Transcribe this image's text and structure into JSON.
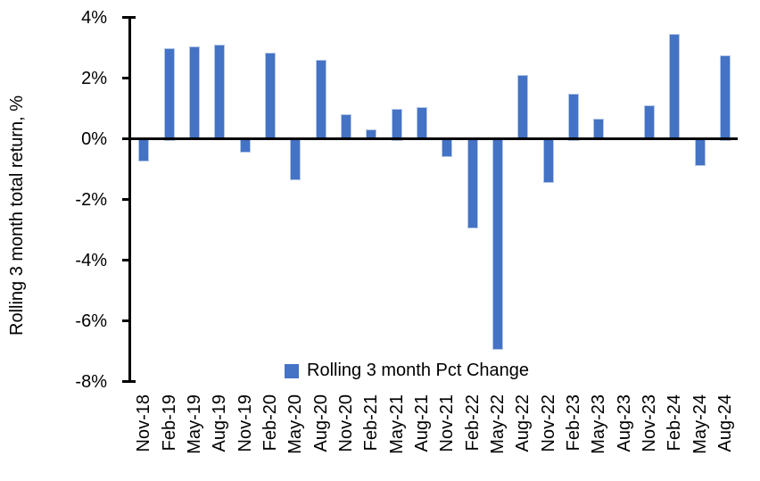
{
  "chart_data": {
    "type": "bar",
    "title": "",
    "ylabel": "Rolling 3 month total return, %",
    "legend_label": "Rolling 3 month Pct Change",
    "legend_position": "bottom-center",
    "grid": false,
    "categories": [
      "Nov-18",
      "Feb-19",
      "May-19",
      "Aug-19",
      "Nov-19",
      "Feb-20",
      "May-20",
      "Aug-20",
      "Nov-20",
      "Feb-21",
      "May-21",
      "Aug-21",
      "Nov-21",
      "Feb-22",
      "May-22",
      "Aug-22",
      "Nov-22",
      "Feb-23",
      "May-23",
      "Aug-23",
      "Nov-23",
      "Feb-24",
      "May-24",
      "Aug-24"
    ],
    "values": [
      -0.7,
      3.0,
      3.05,
      3.1,
      -0.4,
      2.85,
      -1.3,
      2.6,
      0.8,
      0.3,
      1.0,
      1.05,
      -0.55,
      -2.9,
      -6.9,
      2.1,
      -1.4,
      1.5,
      0.65,
      0.0,
      1.1,
      3.45,
      -0.85,
      2.75
    ],
    "ylim": [
      -8,
      4
    ],
    "ytick_step": 2,
    "ytick_values": [
      4,
      2,
      0,
      -2,
      -4,
      -6,
      -8
    ],
    "ytick_labels": [
      "4%",
      "2%",
      "0%",
      "-2%",
      "-4%",
      "-6%",
      "-8%"
    ],
    "colors": {
      "bar_fill": "#4472C4",
      "bar_border": "#B4C7E7",
      "axis": "#000000",
      "text": "#000000",
      "background": "#FFFFFF"
    }
  }
}
